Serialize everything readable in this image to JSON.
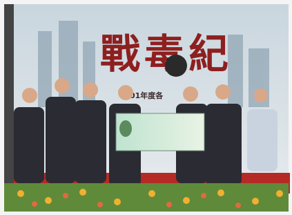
{
  "banner": {
    "title": "戰毒紀",
    "subtitle": "01年度各"
  }
}
